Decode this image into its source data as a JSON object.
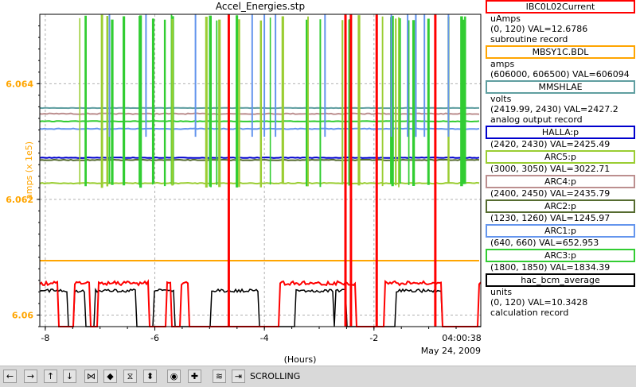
{
  "window_title": "Accel_Energies.stp",
  "chart_data": {
    "type": "line",
    "title": "Accel_Energies.stp",
    "xlabel": "(Hours)",
    "ylabel": "amps (x 1e5)",
    "xlim": [
      -8.1,
      -0.05
    ],
    "ylim": [
      6.0598,
      6.0652
    ],
    "x_ticks": [
      -8,
      -6,
      -4,
      -2
    ],
    "x_tick_labels": [
      "-8",
      "-6",
      "-4",
      "-2"
    ],
    "y_ticks": [
      6.06,
      6.062,
      6.064
    ],
    "y_tick_labels": [
      "6.06",
      "6.062",
      "6.064"
    ],
    "end_time": "04:00:38",
    "end_date": "May 24, 2009",
    "grid": true,
    "series": [
      {
        "name": "MBSY1C.BDL",
        "color": "#ffa500",
        "level": 6.06094
      },
      {
        "name": "MMSHLAE",
        "color": "#5f9ea0",
        "level": 6.06358
      },
      {
        "name": "ARC4:p",
        "color": "#bc8f8f",
        "level": 6.06348
      },
      {
        "name": "ARC3:p",
        "color": "#32cd32",
        "level": 6.06335
      },
      {
        "name": "ARC1:p",
        "color": "#6495ed",
        "level": 6.06322
      },
      {
        "name": "HALLA:p",
        "color": "#0000cd",
        "level": 6.06272
      },
      {
        "name": "ARC2:p",
        "color": "#556b2f",
        "level": 6.06268
      },
      {
        "name": "ARC5:p",
        "color": "#9acd32",
        "level": 6.06228
      },
      {
        "name": "IBC0L02Current",
        "color": "#ff0000",
        "level": 6.06055
      },
      {
        "name": "hac_bcm_average",
        "color": "#000000",
        "level": 6.06042
      }
    ],
    "red_spikes_x": [
      -4.65,
      -2.52,
      -2.42,
      -1.95,
      -0.88
    ]
  },
  "legend": [
    {
      "name": "IBC0L02Current",
      "color": "#ff0000",
      "lines": [
        "uAmps",
        "(0, 120) VAL=12.6786",
        "subroutine record"
      ]
    },
    {
      "name": "MBSY1C.BDL",
      "color": "#ffa500",
      "lines": [
        "amps",
        "(606000, 606500)  VAL=606094"
      ]
    },
    {
      "name": "MMSHLAE",
      "color": "#5f9ea0",
      "lines": [
        "volts",
        "(2419.99, 2430)  VAL=2427.2",
        "analog output record"
      ]
    },
    {
      "name": "HALLA:p",
      "color": "#0000cd",
      "lines": [
        "(2420, 2430) VAL=2425.49"
      ]
    },
    {
      "name": "ARC5:p",
      "color": "#9acd32",
      "lines": [
        "(3000, 3050) VAL=3022.71"
      ]
    },
    {
      "name": "ARC4:p",
      "color": "#bc8f8f",
      "lines": [
        "(2400, 2450) VAL=2435.79"
      ]
    },
    {
      "name": "ARC2:p",
      "color": "#556b2f",
      "lines": [
        "(1230, 1260) VAL=1245.97"
      ]
    },
    {
      "name": "ARC1:p",
      "color": "#6495ed",
      "lines": [
        "(640, 660) VAL=652.953"
      ]
    },
    {
      "name": "ARC3:p",
      "color": "#32cd32",
      "lines": [
        "(1800, 1850) VAL=1834.39"
      ]
    },
    {
      "name": "hac_bcm_average",
      "color": "#000000",
      "lines": [
        "units",
        "(0, 120) VAL=10.3428",
        "calculation record"
      ]
    }
  ],
  "toolbar": {
    "buttons": [
      "scroll-left-icon",
      "scroll-right-icon",
      "scroll-up-icon",
      "scroll-down-icon",
      "zoom-in-x-icon",
      "zoom-out-x-icon",
      "zoom-in-y-icon",
      "zoom-out-y-icon",
      "autoscale-icon",
      "center-icon",
      "fit-icon",
      "scroll-end-icon"
    ],
    "status": "SCROLLING"
  }
}
